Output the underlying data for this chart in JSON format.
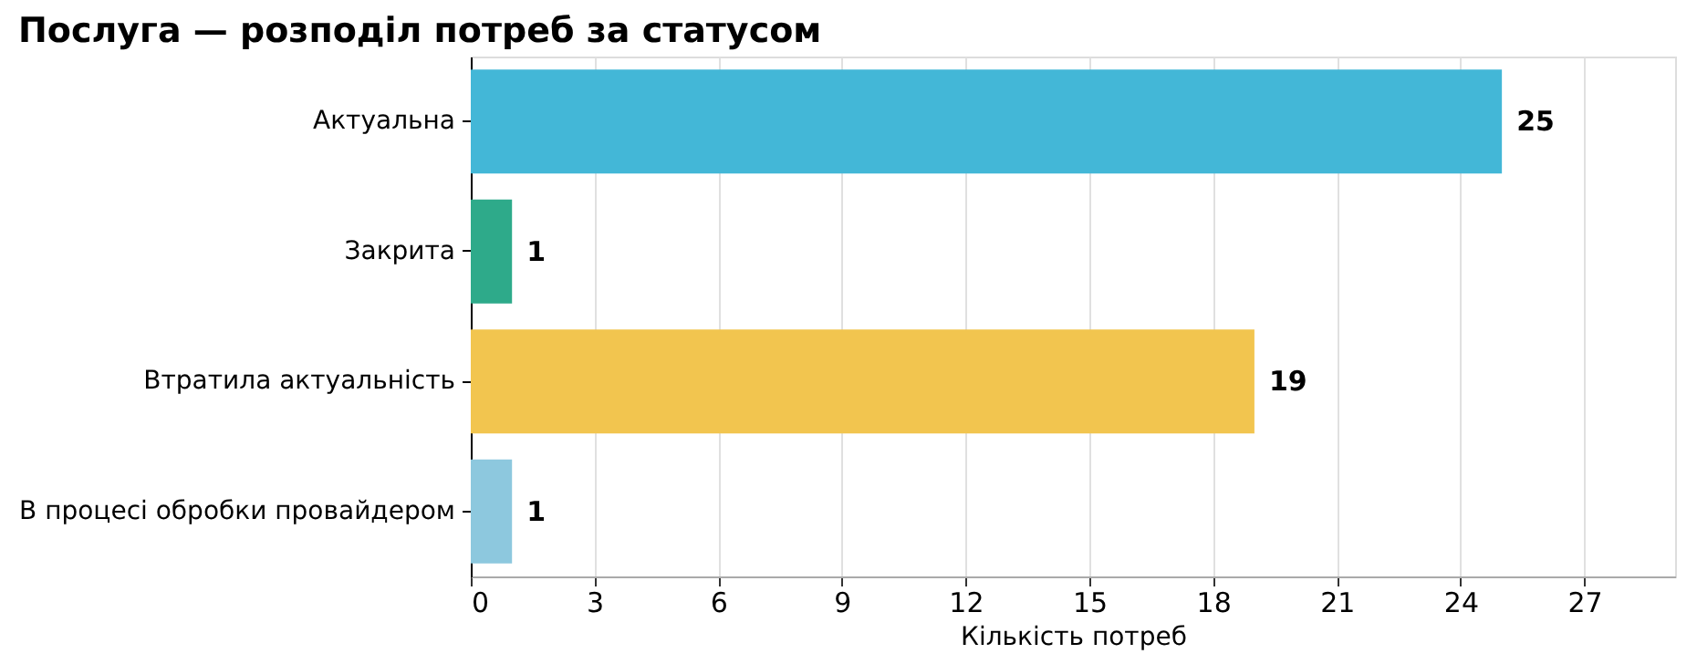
{
  "chart_data": {
    "type": "bar",
    "orientation": "horizontal",
    "title": "Послуга — розподіл потреб за статусом",
    "xlabel": "Кількість потреб",
    "categories": [
      "Актуальна",
      "Закрита",
      "Втратила актуальність",
      "В процесі обробки провайдером"
    ],
    "values": [
      25,
      1,
      19,
      1
    ],
    "colors": [
      "#43b7d7",
      "#2eaa8a",
      "#f2c54f",
      "#8dc8de"
    ],
    "xlim": [
      0,
      29.2
    ],
    "xticks": [
      0,
      3,
      6,
      9,
      12,
      15,
      18,
      21,
      24,
      27
    ],
    "grid": "x",
    "data_labels": true
  }
}
